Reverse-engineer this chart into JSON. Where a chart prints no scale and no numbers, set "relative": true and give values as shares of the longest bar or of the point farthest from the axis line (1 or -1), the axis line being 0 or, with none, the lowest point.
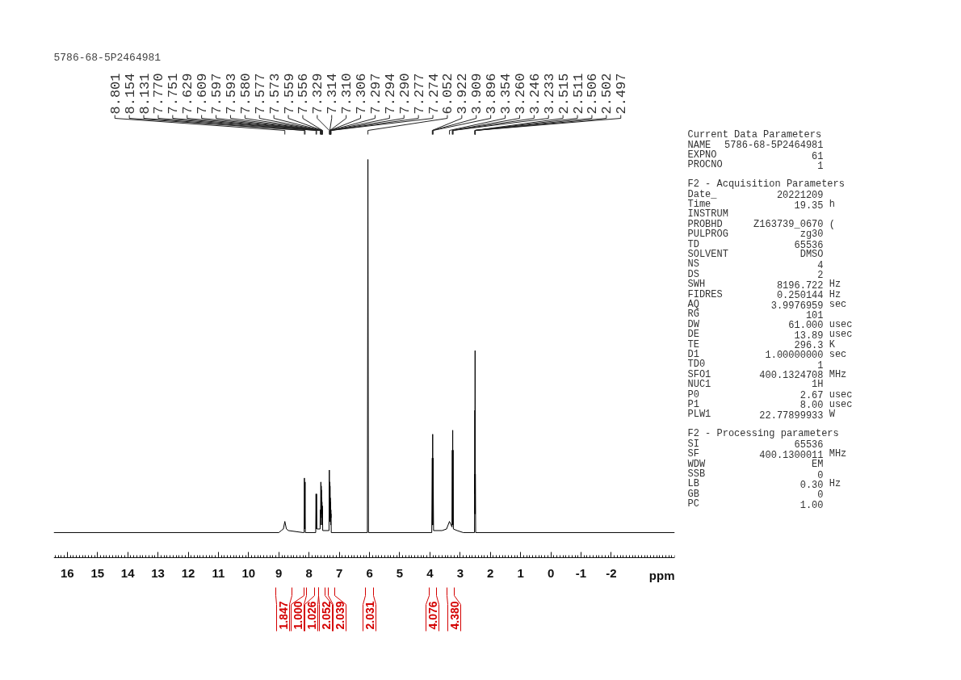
{
  "chart_data": [
    {
      "type": "line",
      "title": "5786-68-5P2464981",
      "xlabel": "ppm",
      "relative": true,
      "color": "#000000",
      "xlim": [
        16.45,
        -4.1
      ],
      "xticks": [
        16,
        15,
        14,
        13,
        12,
        11,
        10,
        9,
        8,
        7,
        6,
        5,
        4,
        3,
        2,
        1,
        0,
        -1,
        -2
      ],
      "x": [
        16.45,
        9.0,
        8.92,
        8.85,
        8.801,
        8.75,
        8.68,
        8.2,
        8.162,
        8.154,
        8.142,
        8.131,
        8.123,
        7.78,
        7.77,
        7.76,
        7.751,
        7.742,
        7.635,
        7.629,
        7.619,
        7.609,
        7.603,
        7.597,
        7.595,
        7.593,
        7.586,
        7.58,
        7.578,
        7.577,
        7.575,
        7.573,
        7.566,
        7.559,
        7.557,
        7.556,
        7.548,
        7.34,
        7.329,
        7.32,
        7.314,
        7.312,
        7.31,
        7.308,
        7.306,
        7.3,
        7.297,
        7.295,
        7.294,
        7.292,
        7.29,
        7.283,
        7.277,
        7.275,
        7.274,
        7.265,
        6.07,
        6.052,
        6.035,
        3.94,
        3.922,
        3.915,
        3.909,
        3.902,
        3.896,
        3.88,
        3.6,
        3.45,
        3.354,
        3.3,
        3.27,
        3.26,
        3.253,
        3.246,
        3.24,
        3.233,
        3.225,
        3.1,
        2.9,
        2.525,
        2.515,
        2.513,
        2.511,
        2.5085,
        2.506,
        2.504,
        2.502,
        2.4995,
        2.497,
        2.487,
        -4.1
      ],
      "values": [
        0.063,
        0.063,
        0.068,
        0.072,
        0.091,
        0.072,
        0.068,
        0.063,
        0.063,
        0.2,
        0.072,
        0.19,
        0.063,
        0.063,
        0.16,
        0.072,
        0.16,
        0.072,
        0.072,
        0.12,
        0.082,
        0.19,
        0.11,
        0.18,
        0.14,
        0.17,
        0.1,
        0.15,
        0.13,
        0.14,
        0.12,
        0.14,
        0.082,
        0.13,
        0.11,
        0.12,
        0.068,
        0.068,
        0.22,
        0.09,
        0.18,
        0.14,
        0.19,
        0.14,
        0.18,
        0.1,
        0.15,
        0.12,
        0.14,
        0.12,
        0.13,
        0.082,
        0.12,
        0.1,
        0.11,
        0.063,
        0.063,
        1,
        0.063,
        0.063,
        0.25,
        0.082,
        0.31,
        0.082,
        0.25,
        0.068,
        0.068,
        0.072,
        0.091,
        0.082,
        0.077,
        0.27,
        0.082,
        0.32,
        0.082,
        0.27,
        0.072,
        0.068,
        0.063,
        0.063,
        0.21,
        0.11,
        0.37,
        0.16,
        0.52,
        0.16,
        0.37,
        0.11,
        0.21,
        0.063,
        0.063
      ],
      "annotations": [
        {
          "text": "8.801",
          "x": 8.801
        },
        {
          "text": "8.154",
          "x": 8.154
        },
        {
          "text": "8.131",
          "x": 8.131
        },
        {
          "text": "7.770",
          "x": 7.77
        },
        {
          "text": "7.751",
          "x": 7.751
        },
        {
          "text": "7.629",
          "x": 7.629
        },
        {
          "text": "7.609",
          "x": 7.609
        },
        {
          "text": "7.597",
          "x": 7.597
        },
        {
          "text": "7.593",
          "x": 7.593
        },
        {
          "text": "7.580",
          "x": 7.58
        },
        {
          "text": "7.577",
          "x": 7.577
        },
        {
          "text": "7.573",
          "x": 7.573
        },
        {
          "text": "7.559",
          "x": 7.559
        },
        {
          "text": "7.556",
          "x": 7.556
        },
        {
          "text": "7.329",
          "x": 7.329
        },
        {
          "text": "7.314",
          "x": 7.314
        },
        {
          "text": "7.310",
          "x": 7.31
        },
        {
          "text": "7.306",
          "x": 7.306
        },
        {
          "text": "7.297",
          "x": 7.297
        },
        {
          "text": "7.294",
          "x": 7.294
        },
        {
          "text": "7.290",
          "x": 7.29
        },
        {
          "text": "7.277",
          "x": 7.277
        },
        {
          "text": "7.274",
          "x": 7.274
        },
        {
          "text": "6.052",
          "x": 6.052
        },
        {
          "text": "3.922",
          "x": 3.922
        },
        {
          "text": "3.909",
          "x": 3.909
        },
        {
          "text": "3.896",
          "x": 3.896
        },
        {
          "text": "3.354",
          "x": 3.354
        },
        {
          "text": "3.260",
          "x": 3.26
        },
        {
          "text": "3.246",
          "x": 3.246
        },
        {
          "text": "3.233",
          "x": 3.233
        },
        {
          "text": "2.515",
          "x": 2.515
        },
        {
          "text": "2.511",
          "x": 2.511
        },
        {
          "text": "2.506",
          "x": 2.506
        },
        {
          "text": "2.502",
          "x": 2.502
        },
        {
          "text": "2.497",
          "x": 2.497
        },
        "1.847",
        "1.000",
        "1.026",
        "2.052",
        "2.039",
        "2.031",
        "4.076",
        "4.380"
      ]
    },
    {
      "type": "other",
      "title": "Current Data Parameters",
      "categories": [
        "NAME",
        "EXPNO",
        "PROCNO"
      ],
      "value_labels": [
        "5786-68-5P2464981",
        "61",
        "1"
      ]
    },
    {
      "type": "other",
      "title": "F2 - Acquisition Parameters",
      "categories": [
        "Date_",
        "Time",
        "INSTRUM",
        "PROBHD",
        "PULPROG",
        "TD",
        "SOLVENT",
        "NS",
        "DS",
        "SWH",
        "FIDRES",
        "AQ",
        "RG",
        "DW",
        "DE",
        "TE",
        "D1",
        "TD0",
        "SFO1",
        "NUC1",
        "P0",
        "P1",
        "PLW1"
      ],
      "value_labels": [
        "20221209",
        "19.35 h",
        null,
        "Z163739_0670 (",
        "zg30",
        "65536",
        "DMSO",
        "4",
        "2",
        "8196.722 Hz",
        "0.250144 Hz",
        "3.9976959 sec",
        "101",
        "61.000 usec",
        "13.89 usec",
        "296.3 K",
        "1.00000000 sec",
        "1",
        "400.1324708 MHz",
        "1H",
        "2.67 usec",
        "8.00 usec",
        "22.77899933 W"
      ]
    },
    {
      "type": "other",
      "title": "F2 - Processing parameters",
      "categories": [
        "SI",
        "SF",
        "WDW",
        "SSB",
        "LB",
        "GB",
        "PC"
      ],
      "value_labels": [
        "65536",
        "400.1300011 MHz",
        "EM",
        "0",
        "0.30 Hz",
        "0",
        "1.00"
      ]
    }
  ]
}
